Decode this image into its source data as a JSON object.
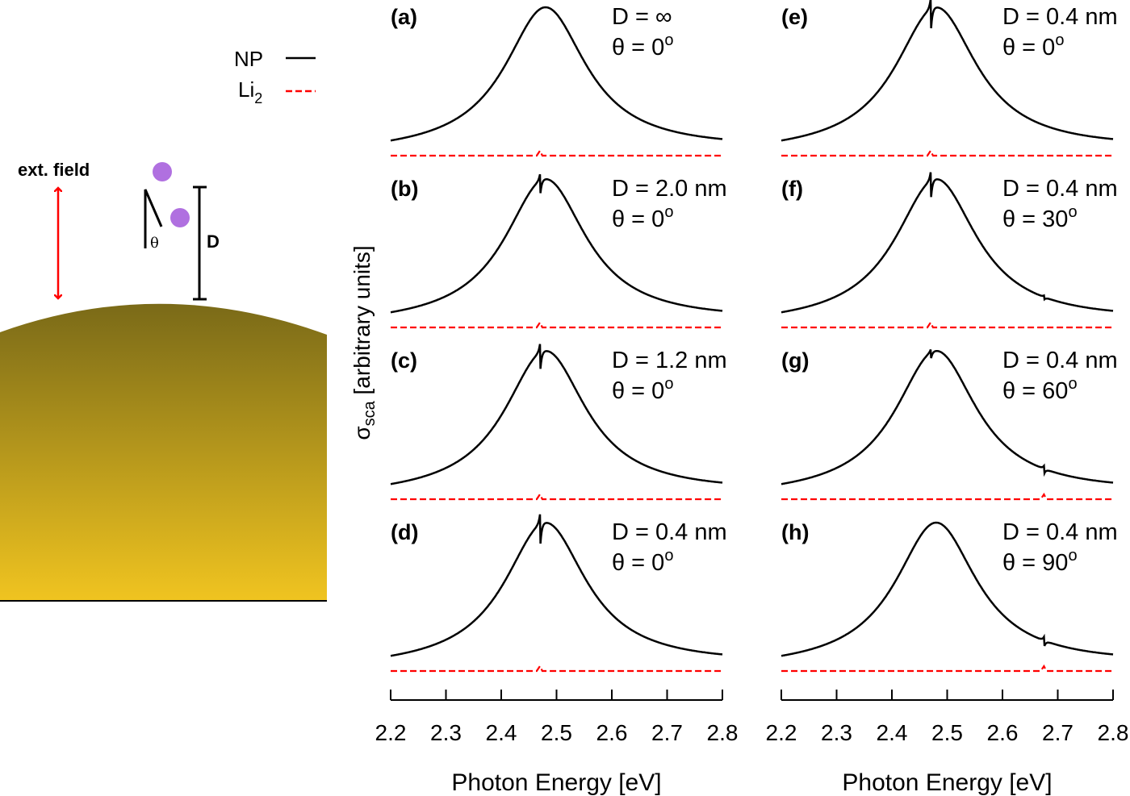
{
  "legend": {
    "entries": [
      {
        "name": "NP",
        "color": "#000000",
        "style": "solid"
      },
      {
        "name": "Li",
        "sub": "2",
        "color": "#ff0000",
        "style": "dashed"
      }
    ]
  },
  "schematic": {
    "field_label": "ext. field",
    "angle_label": "θ",
    "distance_label": "D",
    "field_color": "#ff0000",
    "atom_color": "#b070e0",
    "particle_colors": [
      "#7a6a18",
      "#f0c420"
    ]
  },
  "chart_data": {
    "type": "line",
    "xlabel": "Photon Energy [eV]",
    "ylabel": "σ",
    "ylabel_sub": "sca",
    "ylabel_rest": " [arbitrary units]",
    "xlim": [
      2.2,
      2.8
    ],
    "xticks": [
      "2.2",
      "2.3",
      "2.4",
      "2.5",
      "2.6",
      "2.7",
      "2.8"
    ],
    "grid": false,
    "legend_placement": "top-left",
    "series_colors": {
      "NP": "#000000",
      "Li2": "#ff0000"
    },
    "panels": [
      {
        "label": "(a)",
        "D": "D = ∞",
        "theta": "θ = 0",
        "deg": "o",
        "np_peak_eV": 2.48,
        "np_hwhm_eV": 0.09,
        "dip_eV": 2.47,
        "dip_depth": 0,
        "side_eV": 2.675,
        "side_depth": 0,
        "li2_bump_eV": 2.47
      },
      {
        "label": "(b)",
        "D": "D = 2.0 nm",
        "theta": "θ = 0",
        "deg": "o",
        "np_peak_eV": 2.48,
        "np_hwhm_eV": 0.09,
        "dip_eV": 2.47,
        "dip_depth": 0.13,
        "side_eV": 2.675,
        "side_depth": 0,
        "li2_bump_eV": 2.47
      },
      {
        "label": "(c)",
        "D": "D = 1.2 nm",
        "theta": "θ = 0",
        "deg": "o",
        "np_peak_eV": 2.48,
        "np_hwhm_eV": 0.09,
        "dip_eV": 2.47,
        "dip_depth": 0.17,
        "side_eV": 2.675,
        "side_depth": 0,
        "li2_bump_eV": 2.47
      },
      {
        "label": "(d)",
        "D": "D = 0.4 nm",
        "theta": "θ = 0",
        "deg": "o",
        "np_peak_eV": 2.48,
        "np_hwhm_eV": 0.09,
        "dip_eV": 2.47,
        "dip_depth": 0.2,
        "side_eV": 2.675,
        "side_depth": 0,
        "li2_bump_eV": 2.47
      },
      {
        "label": "(e)",
        "D": "D = 0.4 nm",
        "theta": "θ = 0",
        "deg": "o",
        "np_peak_eV": 2.48,
        "np_hwhm_eV": 0.09,
        "dip_eV": 2.47,
        "dip_depth": 0.2,
        "side_eV": 2.675,
        "side_depth": 0,
        "li2_bump_eV": 2.47
      },
      {
        "label": "(f)",
        "D": "D = 0.4 nm",
        "theta": "θ = 30",
        "deg": "o",
        "np_peak_eV": 2.48,
        "np_hwhm_eV": 0.09,
        "dip_eV": 2.47,
        "dip_depth": 0.17,
        "side_eV": 2.675,
        "side_depth": 0.02,
        "li2_bump_eV": 2.47
      },
      {
        "label": "(g)",
        "D": "D = 0.4 nm",
        "theta": "θ = 60",
        "deg": "o",
        "np_peak_eV": 2.48,
        "np_hwhm_eV": 0.09,
        "dip_eV": 2.47,
        "dip_depth": 0.06,
        "side_eV": 2.675,
        "side_depth": 0.04,
        "li2_bump_eV": 2.675
      },
      {
        "label": "(h)",
        "D": "D = 0.4 nm",
        "theta": "θ = 90",
        "deg": "o",
        "np_peak_eV": 2.48,
        "np_hwhm_eV": 0.09,
        "dip_eV": 2.47,
        "dip_depth": 0,
        "side_eV": 2.675,
        "side_depth": 0.05,
        "li2_bump_eV": 2.675
      }
    ]
  }
}
